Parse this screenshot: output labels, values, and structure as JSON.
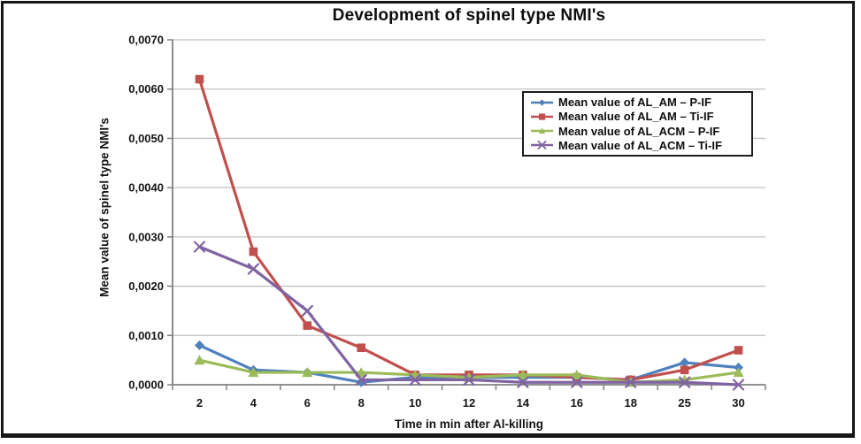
{
  "window": {
    "background_color": "#ffffff",
    "frame_border_color": "#161616"
  },
  "chart_data": {
    "type": "line",
    "title": "Development of spinel type NMI's",
    "xlabel": "Time in min after Al-killing",
    "ylabel": "Mean value of spinel type NMI's",
    "categories": [
      2,
      4,
      6,
      8,
      10,
      12,
      14,
      16,
      18,
      25,
      30
    ],
    "x_tick_labels": [
      "2",
      "4",
      "6",
      "8",
      "10",
      "12",
      "14",
      "16",
      "18",
      "25",
      "30"
    ],
    "y_ticks": [
      0.0,
      0.001,
      0.002,
      0.003,
      0.004,
      0.005,
      0.006,
      0.007
    ],
    "y_tick_labels": [
      "0,0000",
      "0,0010",
      "0,0020",
      "0,0030",
      "0,0040",
      "0,0050",
      "0,0060",
      "0,0070"
    ],
    "ylim": [
      0.0,
      0.007
    ],
    "grid": true,
    "legend_position": "inside-upper-right",
    "series": [
      {
        "name": "Mean value of AL_AM – P-IF",
        "color": "#4F81BD",
        "marker": "diamond",
        "values": [
          0.0008,
          0.0003,
          0.00025,
          5e-05,
          0.00015,
          0.00015,
          0.00015,
          0.00015,
          0.0001,
          0.00045,
          0.00035
        ]
      },
      {
        "name": "Mean value of AL_AM – Ti-IF",
        "color": "#C0504D",
        "marker": "square",
        "values": [
          0.0062,
          0.0027,
          0.0012,
          0.00075,
          0.0002,
          0.0002,
          0.0002,
          0.00015,
          0.0001,
          0.0003,
          0.0007
        ]
      },
      {
        "name": "Mean value of AL_ACM – P-IF",
        "color": "#9BBB59",
        "marker": "triangle",
        "values": [
          0.0005,
          0.00025,
          0.00025,
          0.00025,
          0.0002,
          0.00015,
          0.0002,
          0.0002,
          5e-05,
          0.0001,
          0.00025
        ]
      },
      {
        "name": "Mean value of AL_ACM – Ti-IF",
        "color": "#8064A2",
        "marker": "x",
        "values": [
          0.0028,
          0.00235,
          0.0015,
          0.0001,
          0.0001,
          0.0001,
          5e-05,
          5e-05,
          5e-05,
          5e-05,
          0.0
        ]
      }
    ],
    "style": {
      "gridline_color": "#c0c0c0",
      "axis_color": "#808080",
      "text_color": "#141414",
      "legend_border_color": "#1c1c1c"
    }
  }
}
